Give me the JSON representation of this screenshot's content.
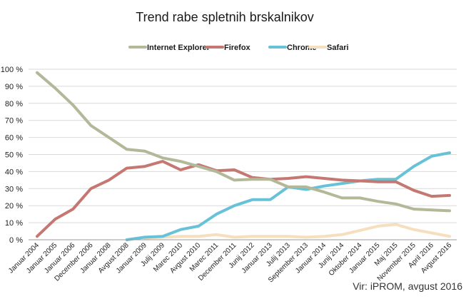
{
  "chart_data": {
    "type": "line",
    "title": "Trend rabe spletnih brskalnikov",
    "source": "Vir: iPROM, avgust 2016",
    "xlabel": "",
    "ylabel": "",
    "ylim": [
      0,
      100
    ],
    "y_ticks": [
      "0 %",
      "10 %",
      "20 %",
      "30 %",
      "40 %",
      "50 %",
      "60 %",
      "70 %",
      "80 %",
      "90 %",
      "100 %"
    ],
    "grid": "horizontal",
    "legend_position": "top",
    "categories": [
      "Januar 2004",
      "Januar 2005",
      "Januar 2006",
      "December 2006",
      "Januar 2008",
      "Avgust 2008",
      "Januar 2009",
      "Julij 2009",
      "Marec 2010",
      "Avgust 2010",
      "Marec 2011",
      "December 2011",
      "Junij 2012",
      "Januar 2013",
      "Julij 2013",
      "September 2013",
      "Januar 2014",
      "Junij 2014",
      "Oktober 2014",
      "Januar 2015",
      "Maj 2015",
      "November 2015",
      "April 2016",
      "Avgust 2016"
    ],
    "series": [
      {
        "name": "Internet Explorer",
        "color": "#b3b899",
        "values": [
          98,
          89,
          79,
          67,
          60,
          53,
          52,
          48,
          46,
          43,
          40,
          35,
          35.5,
          35.5,
          31,
          31,
          28,
          24.5,
          24.5,
          22.5,
          21,
          18,
          17.5,
          17
        ]
      },
      {
        "name": "Firefox",
        "color": "#c57872",
        "values": [
          2,
          12,
          18,
          30,
          35,
          42,
          43,
          46,
          41,
          44,
          40.5,
          41,
          36.5,
          35.5,
          36,
          37,
          36,
          35,
          34.5,
          34,
          34,
          29,
          25.5,
          26
        ]
      },
      {
        "name": "Chrome",
        "color": "#67c2d8",
        "values": [
          null,
          null,
          null,
          null,
          null,
          0,
          1.5,
          2,
          6,
          8,
          15,
          20,
          23.5,
          23.5,
          31,
          29.5,
          31.5,
          33,
          34.5,
          35.5,
          35.5,
          43,
          49,
          51
        ]
      },
      {
        "name": "Safari",
        "color": "#f5dfbe",
        "values": [
          null,
          null,
          null,
          null,
          null,
          null,
          1,
          1.5,
          2,
          2,
          3,
          1.5,
          2,
          2,
          2,
          1.5,
          2,
          3,
          5.5,
          8,
          9,
          6,
          4,
          2
        ]
      }
    ]
  }
}
